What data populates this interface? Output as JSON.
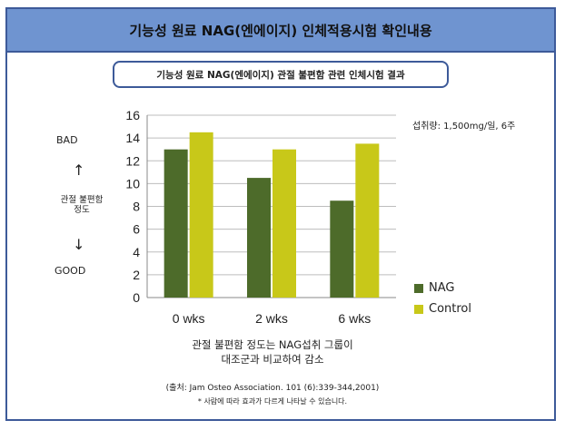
{
  "header": {
    "title": "기능성 원료 NAG(엔에이지) 인체적용시험 확인내용"
  },
  "subtitle": "기능성 원료 NAG(엔에이지) 관절 불편함 관련 인체시험 결과",
  "side_labels": {
    "bad": "BAD",
    "good": "GOOD",
    "ylabel_line1": "관절 불편함",
    "ylabel_line2": "정도",
    "arrow_up_icon": "arrow-up-icon",
    "arrow_down_icon": "arrow-down-icon"
  },
  "dosage": "섭취량: 1,500mg/일, 6주",
  "caption_line1": "관절 불편함 정도는 NAG섭취 그룹이",
  "caption_line2": "대조군과 비교하여 감소",
  "source": "(출처: Jam Osteo Association. 101 (6):339-344,2001)",
  "note": "* 사람에 따라 효과가 다르게 나타날 수 있습니다.",
  "colors": {
    "header_bg": "#6f94d0",
    "border": "#3d5a99",
    "nag": "#4d6b2a",
    "control": "#c8c819"
  },
  "chart_data": {
    "type": "bar",
    "categories": [
      "0 wks",
      "2 wks",
      "6 wks"
    ],
    "series": [
      {
        "name": "NAG",
        "values": [
          13,
          10.5,
          8.5
        ],
        "color": "#4d6b2a"
      },
      {
        "name": "Control",
        "values": [
          14.5,
          13,
          13.5
        ],
        "color": "#c8c819"
      }
    ],
    "yticks": [
      0,
      2,
      4,
      6,
      8,
      10,
      12,
      14,
      16
    ],
    "ylim": [
      0,
      16
    ],
    "grid": true,
    "legend": "bottom-right"
  }
}
